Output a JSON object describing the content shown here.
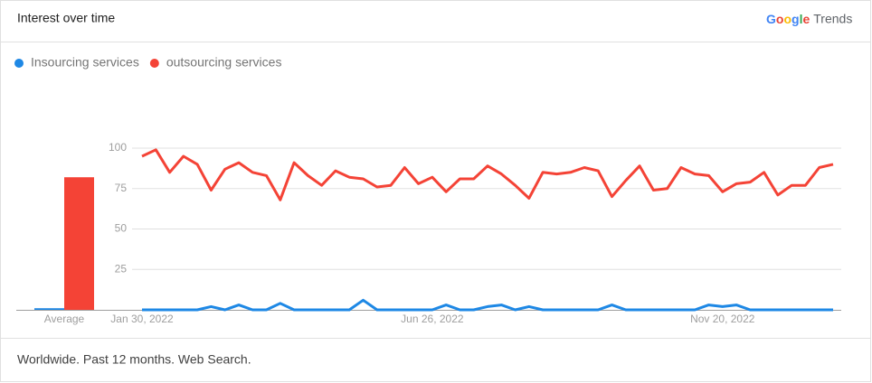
{
  "header": {
    "title": "Interest over time",
    "logo": "Google",
    "product": "Trends"
  },
  "chart_data": {
    "type": "line",
    "categories": [
      "Jan 30, 2022",
      null,
      null,
      null,
      null,
      null,
      null,
      null,
      null,
      null,
      null,
      null,
      null,
      null,
      null,
      null,
      null,
      null,
      null,
      null,
      null,
      "Jun 26, 2022",
      null,
      null,
      null,
      null,
      null,
      null,
      null,
      null,
      null,
      null,
      null,
      null,
      null,
      null,
      null,
      null,
      null,
      null,
      null,
      null,
      "Nov 20, 2022",
      null,
      null,
      null,
      null,
      null,
      null,
      null,
      null
    ],
    "ylim": [
      0,
      100
    ],
    "yticks": [
      25,
      50,
      75,
      100
    ],
    "grid": true,
    "average_label": "Average",
    "series": [
      {
        "name": "Insourcing services",
        "color": "#1e88e5",
        "average": 1,
        "values": [
          0,
          0,
          0,
          0,
          0,
          2,
          0,
          3,
          0,
          0,
          4,
          0,
          0,
          0,
          0,
          0,
          6,
          0,
          0,
          0,
          0,
          0,
          3,
          0,
          0,
          2,
          3,
          0,
          2,
          0,
          0,
          0,
          0,
          0,
          3,
          0,
          0,
          0,
          0,
          0,
          0,
          3,
          2,
          3,
          0,
          0,
          0,
          0,
          0,
          0,
          0
        ]
      },
      {
        "name": "outsourcing services",
        "color": "#f44336",
        "average": 82,
        "values": [
          95,
          99,
          85,
          95,
          90,
          74,
          87,
          91,
          85,
          83,
          68,
          91,
          83,
          77,
          86,
          82,
          81,
          76,
          77,
          88,
          78,
          82,
          73,
          81,
          81,
          89,
          84,
          77,
          69,
          85,
          84,
          85,
          88,
          86,
          70,
          80,
          89,
          74,
          75,
          88,
          84,
          83,
          73,
          78,
          79,
          85,
          71,
          77,
          77,
          88,
          90
        ]
      }
    ]
  },
  "footer": {
    "text": "Worldwide. Past 12 months. Web Search."
  }
}
